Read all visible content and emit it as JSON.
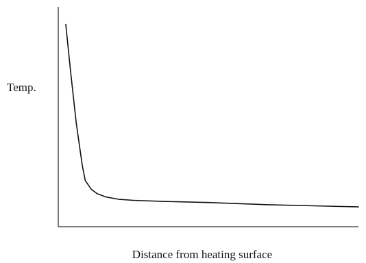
{
  "chart_data": {
    "type": "line",
    "title": "",
    "xlabel": "Distance from heating surface",
    "ylabel": "Temp.",
    "xlim": [
      0,
      100
    ],
    "ylim": [
      0,
      100
    ],
    "grid": false,
    "legend": "none",
    "series": [
      {
        "x": [
          2.5,
          4,
          6,
          8,
          9,
          9.5,
          11,
          13,
          16,
          20,
          25,
          35,
          50,
          70,
          85,
          100
        ],
        "y": [
          92,
          72,
          47,
          28,
          21,
          20,
          17,
          15,
          13.5,
          12.5,
          12,
          11.5,
          11,
          10,
          9.5,
          9
        ]
      }
    ],
    "colors": {
      "line": "#111111",
      "axis": "#333333"
    }
  }
}
